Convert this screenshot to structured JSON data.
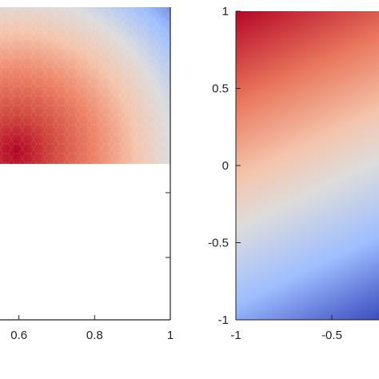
{
  "chart_data": [
    {
      "type": "heatmap",
      "panel": "left",
      "x_tick_labels": [
        "0.6",
        "0.8",
        "1"
      ],
      "x_ticks": [
        0.6,
        0.8,
        1.0
      ],
      "xlim": [
        0.4,
        1.0
      ],
      "ylim": [
        0,
        1
      ],
      "colormap": "coolwarm",
      "field_pattern": "radial, values decrease with distance from bottom-left; faceted (hexagonal patches)",
      "colors": {
        "high": "#b40426",
        "mid": "#dddcdc",
        "low": "#3b4cc0"
      }
    },
    {
      "type": "heatmap",
      "panel": "right",
      "x_tick_labels": [
        "-1",
        "-0.5"
      ],
      "x_ticks": [
        -1,
        -0.5
      ],
      "y_tick_labels": [
        "1",
        "0.5",
        "0",
        "-0.5",
        "-1"
      ],
      "y_ticks": [
        1,
        0.5,
        0,
        -0.5,
        -1
      ],
      "xlim": [
        -1,
        0
      ],
      "ylim": [
        -1,
        1
      ],
      "colormap": "coolwarm",
      "field_pattern": "diagonal gradient: red at top-left, blue at bottom-right",
      "colors": {
        "high": "#b40426",
        "mid": "#dddcdc",
        "low": "#3b4cc0"
      }
    }
  ]
}
